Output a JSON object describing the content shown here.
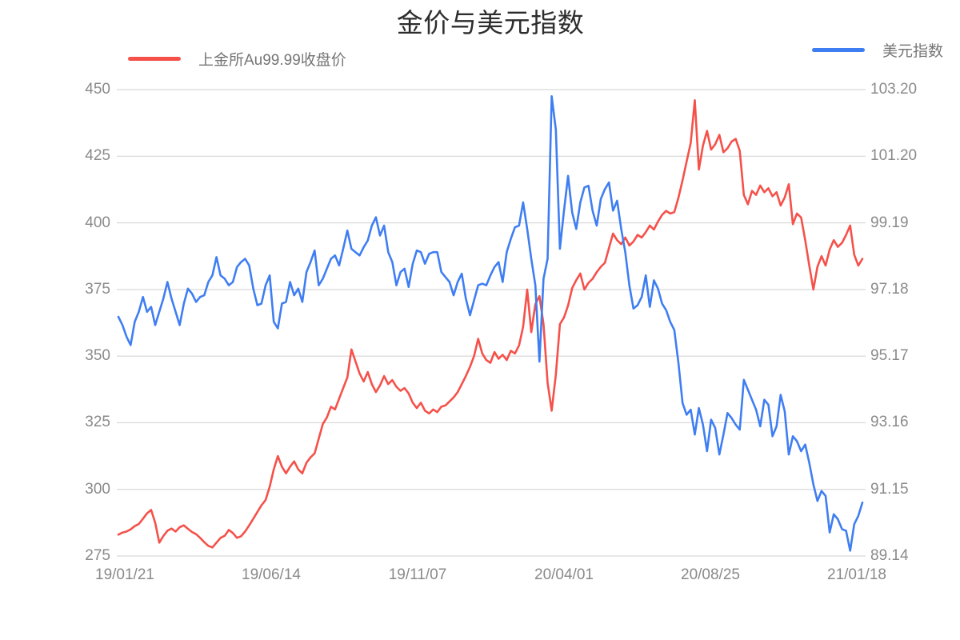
{
  "title": "金价与美元指数",
  "chart_data": {
    "type": "line",
    "title": "金价与美元指数",
    "grid": true,
    "legend_position": "top",
    "x_axis": {
      "tick_labels": [
        "19/01/21",
        "19/06/14",
        "19/11/07",
        "20/04/01",
        "20/08/25",
        "21/01/18"
      ],
      "range_start": "19/01/21",
      "range_end": "21/01/18"
    },
    "left_axis": {
      "min": 275,
      "max": 450,
      "tick_labels_top_to_bottom": [
        "450",
        "425",
        "400",
        "375",
        "350",
        "325",
        "300",
        "275"
      ]
    },
    "right_axis": {
      "min": 89.14,
      "max": 103.2,
      "tick_labels_top_to_bottom": [
        "103.20",
        "101.20",
        "99.19",
        "97.18",
        "95.17",
        "93.16",
        "91.15",
        "89.14"
      ]
    },
    "series": [
      {
        "name": "上金所Au99.99收盘价",
        "axis": "left",
        "color": "#f5514a",
        "values": [
          283.0,
          283.8,
          284.2,
          285.0,
          286.2,
          287.0,
          289.0,
          291.0,
          292.3,
          287.5,
          280.0,
          282.5,
          284.5,
          285.3,
          284.2,
          285.8,
          286.5,
          285.2,
          284.0,
          283.2,
          281.8,
          280.2,
          278.8,
          278.2,
          280.0,
          281.8,
          282.6,
          284.8,
          283.6,
          281.8,
          282.4,
          284.2,
          286.5,
          289.0,
          291.5,
          294.0,
          296.0,
          301.0,
          307.5,
          312.5,
          308.5,
          306.0,
          308.5,
          310.5,
          307.5,
          306.0,
          310.0,
          312.0,
          313.5,
          319.0,
          324.5,
          327.0,
          331.0,
          330.0,
          334.0,
          338.0,
          342.0,
          352.5,
          348.0,
          343.5,
          340.5,
          344.0,
          339.5,
          336.5,
          339.0,
          342.5,
          339.5,
          341.0,
          338.5,
          337.0,
          338.0,
          336.0,
          332.5,
          330.5,
          332.5,
          329.5,
          328.5,
          330.0,
          329.0,
          331.0,
          331.5,
          333.0,
          334.5,
          336.5,
          339.5,
          342.5,
          346.0,
          350.0,
          356.5,
          351.0,
          348.5,
          347.5,
          351.5,
          349.0,
          350.5,
          348.5,
          352.0,
          351.0,
          354.0,
          361.0,
          375.0,
          359.0,
          369.5,
          372.5,
          362.0,
          340.0,
          329.5,
          343.0,
          362.0,
          364.5,
          369.0,
          375.5,
          378.5,
          381.0,
          375.0,
          377.5,
          379.0,
          381.5,
          383.5,
          385.0,
          390.5,
          396.0,
          393.5,
          392.0,
          394.5,
          391.5,
          393.0,
          395.5,
          394.5,
          396.5,
          399.0,
          397.5,
          400.5,
          403.0,
          404.5,
          403.5,
          404.0,
          409.5,
          416.0,
          423.0,
          430.0,
          446.0,
          420.0,
          429.0,
          434.5,
          427.5,
          429.5,
          433.0,
          426.5,
          428.0,
          430.5,
          431.5,
          427.0,
          410.5,
          407.0,
          412.0,
          410.5,
          414.0,
          411.5,
          413.0,
          410.0,
          411.5,
          406.5,
          409.5,
          414.5,
          399.5,
          403.5,
          402.0,
          393.5,
          384.0,
          375.0,
          383.5,
          387.5,
          384.0,
          390.0,
          393.5,
          391.0,
          392.5,
          395.5,
          399.0,
          388.0,
          384.0,
          386.5
        ]
      },
      {
        "name": "美元指数",
        "axis": "right",
        "color": "#3f7ef2",
        "values": [
          96.35,
          96.1,
          95.75,
          95.5,
          96.2,
          96.5,
          96.95,
          96.5,
          96.65,
          96.1,
          96.5,
          96.9,
          97.4,
          96.9,
          96.5,
          96.1,
          96.75,
          97.2,
          97.05,
          96.8,
          96.95,
          97.0,
          97.4,
          97.6,
          98.15,
          97.6,
          97.5,
          97.3,
          97.4,
          97.85,
          98.0,
          98.1,
          97.9,
          97.2,
          96.7,
          96.75,
          97.3,
          97.6,
          96.2,
          96.0,
          96.75,
          96.8,
          97.4,
          97.0,
          97.2,
          96.8,
          97.7,
          98.0,
          98.35,
          97.3,
          97.5,
          97.8,
          98.1,
          98.2,
          97.9,
          98.4,
          98.95,
          98.4,
          98.3,
          98.2,
          98.45,
          98.65,
          99.1,
          99.35,
          98.8,
          99.1,
          98.3,
          98.0,
          97.3,
          97.7,
          97.8,
          97.25,
          97.95,
          98.35,
          98.3,
          97.95,
          98.25,
          98.3,
          98.3,
          97.7,
          97.55,
          97.4,
          97.0,
          97.4,
          97.65,
          96.9,
          96.4,
          96.85,
          97.3,
          97.35,
          97.3,
          97.6,
          97.85,
          98.0,
          97.4,
          98.3,
          98.7,
          99.05,
          99.1,
          99.8,
          99.0,
          98.1,
          97.3,
          95.0,
          97.5,
          98.1,
          103.0,
          102.0,
          98.4,
          99.55,
          100.6,
          99.5,
          99.0,
          99.8,
          100.25,
          100.3,
          99.55,
          99.1,
          99.9,
          100.2,
          100.4,
          99.55,
          99.85,
          99.0,
          98.3,
          97.3,
          96.6,
          96.7,
          96.95,
          97.6,
          96.65,
          97.45,
          97.2,
          96.75,
          96.55,
          96.2,
          95.95,
          94.95,
          93.75,
          93.4,
          93.55,
          92.8,
          93.6,
          93.1,
          92.3,
          93.25,
          93.0,
          92.2,
          92.8,
          93.45,
          93.3,
          93.1,
          92.95,
          94.45,
          94.15,
          93.85,
          93.55,
          93.05,
          93.85,
          93.7,
          92.75,
          93.05,
          94.0,
          93.5,
          92.2,
          92.75,
          92.6,
          92.3,
          92.5,
          91.95,
          91.3,
          90.8,
          91.1,
          90.95,
          89.85,
          90.4,
          90.25,
          89.95,
          89.9,
          89.3,
          90.1,
          90.35,
          90.75
        ]
      }
    ]
  }
}
